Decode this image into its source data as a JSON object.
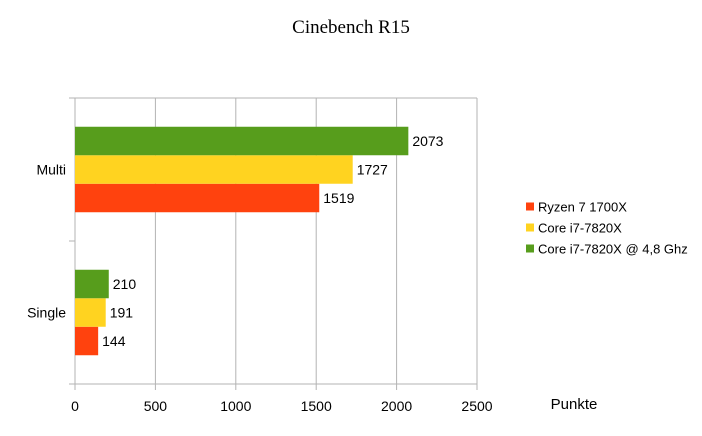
{
  "chart_data": {
    "type": "bar",
    "orientation": "horizontal",
    "title": "Cinebench R15",
    "xlabel": "Punkte",
    "ylabel": "",
    "categories": [
      "Multi",
      "Single"
    ],
    "series": [
      {
        "name": "Ryzen 7 1700X",
        "color": "#ff420e",
        "values": [
          1519,
          144
        ]
      },
      {
        "name": "Core i7-7820X",
        "color": "#ffd320",
        "values": [
          1727,
          191
        ]
      },
      {
        "name": "Core i7-7820X @ 4,8 Ghz",
        "color": "#579d1c",
        "values": [
          2073,
          210
        ]
      }
    ],
    "xlim": [
      0,
      2500
    ],
    "xticks": [
      0,
      500,
      1000,
      1500,
      2000,
      2500
    ],
    "grid": true,
    "legend": "right"
  }
}
